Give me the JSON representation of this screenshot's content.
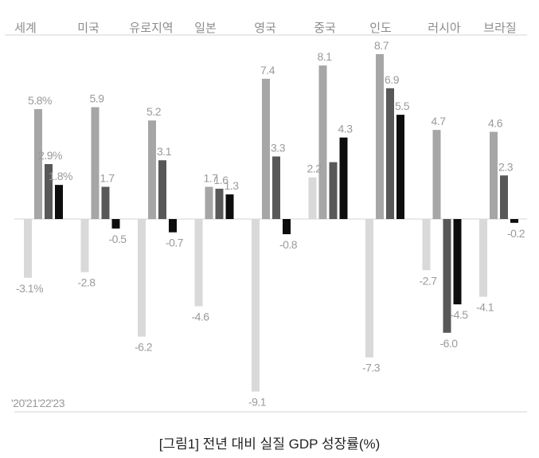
{
  "chart_data": {
    "type": "bar",
    "title": "[그림1] 전년 대비 실질 GDP 성장률(%)",
    "categories": [
      "세계",
      "미국",
      "유로지역",
      "일본",
      "영국",
      "중국",
      "인도",
      "러시아",
      "브라질"
    ],
    "series": [
      {
        "name": "'20",
        "color": "#d9d9d9",
        "values": [
          -3.1,
          -2.8,
          -6.2,
          -4.6,
          -9.1,
          2.2,
          -7.3,
          -2.7,
          -4.1
        ],
        "labels": [
          "-3.1%",
          "-2.8",
          "-6.2",
          "-4.6",
          "-9.1",
          "2.2",
          "-7.3",
          "-2.7",
          "-4.1"
        ]
      },
      {
        "name": "'21",
        "color": "#a6a6a6",
        "values": [
          5.8,
          5.9,
          5.2,
          1.7,
          7.4,
          8.1,
          8.7,
          4.7,
          4.6
        ],
        "labels": [
          "5.8%",
          "5.9",
          "5.2",
          "1.7",
          "7.4",
          "8.1",
          "8.7",
          "4.7",
          "4.6"
        ]
      },
      {
        "name": "'22",
        "color": "#575857",
        "values": [
          2.9,
          1.7,
          3.1,
          1.6,
          3.3,
          3.0,
          6.9,
          -6.0,
          2.3
        ],
        "labels": [
          "2.9%",
          "1.7",
          "3.1",
          "1.6",
          "3.3",
          null,
          "6.9",
          "-6.0",
          "2.3"
        ]
      },
      {
        "name": "'23",
        "color": "#0d0d0d",
        "values": [
          1.8,
          -0.5,
          -0.7,
          1.3,
          -0.8,
          4.3,
          5.5,
          -4.5,
          -0.2
        ],
        "labels": [
          "1.8%",
          "-0.5",
          "-0.7",
          "1.3",
          "-0.8",
          "4.3",
          "5.5",
          "-4.5",
          "-0.2"
        ]
      }
    ],
    "legend_text": "'20'21'22'23",
    "legend_placement": "bottom-left",
    "xlabel": "",
    "ylabel": "",
    "ylim": [
      -9.5,
      9.5
    ],
    "grid": false
  }
}
